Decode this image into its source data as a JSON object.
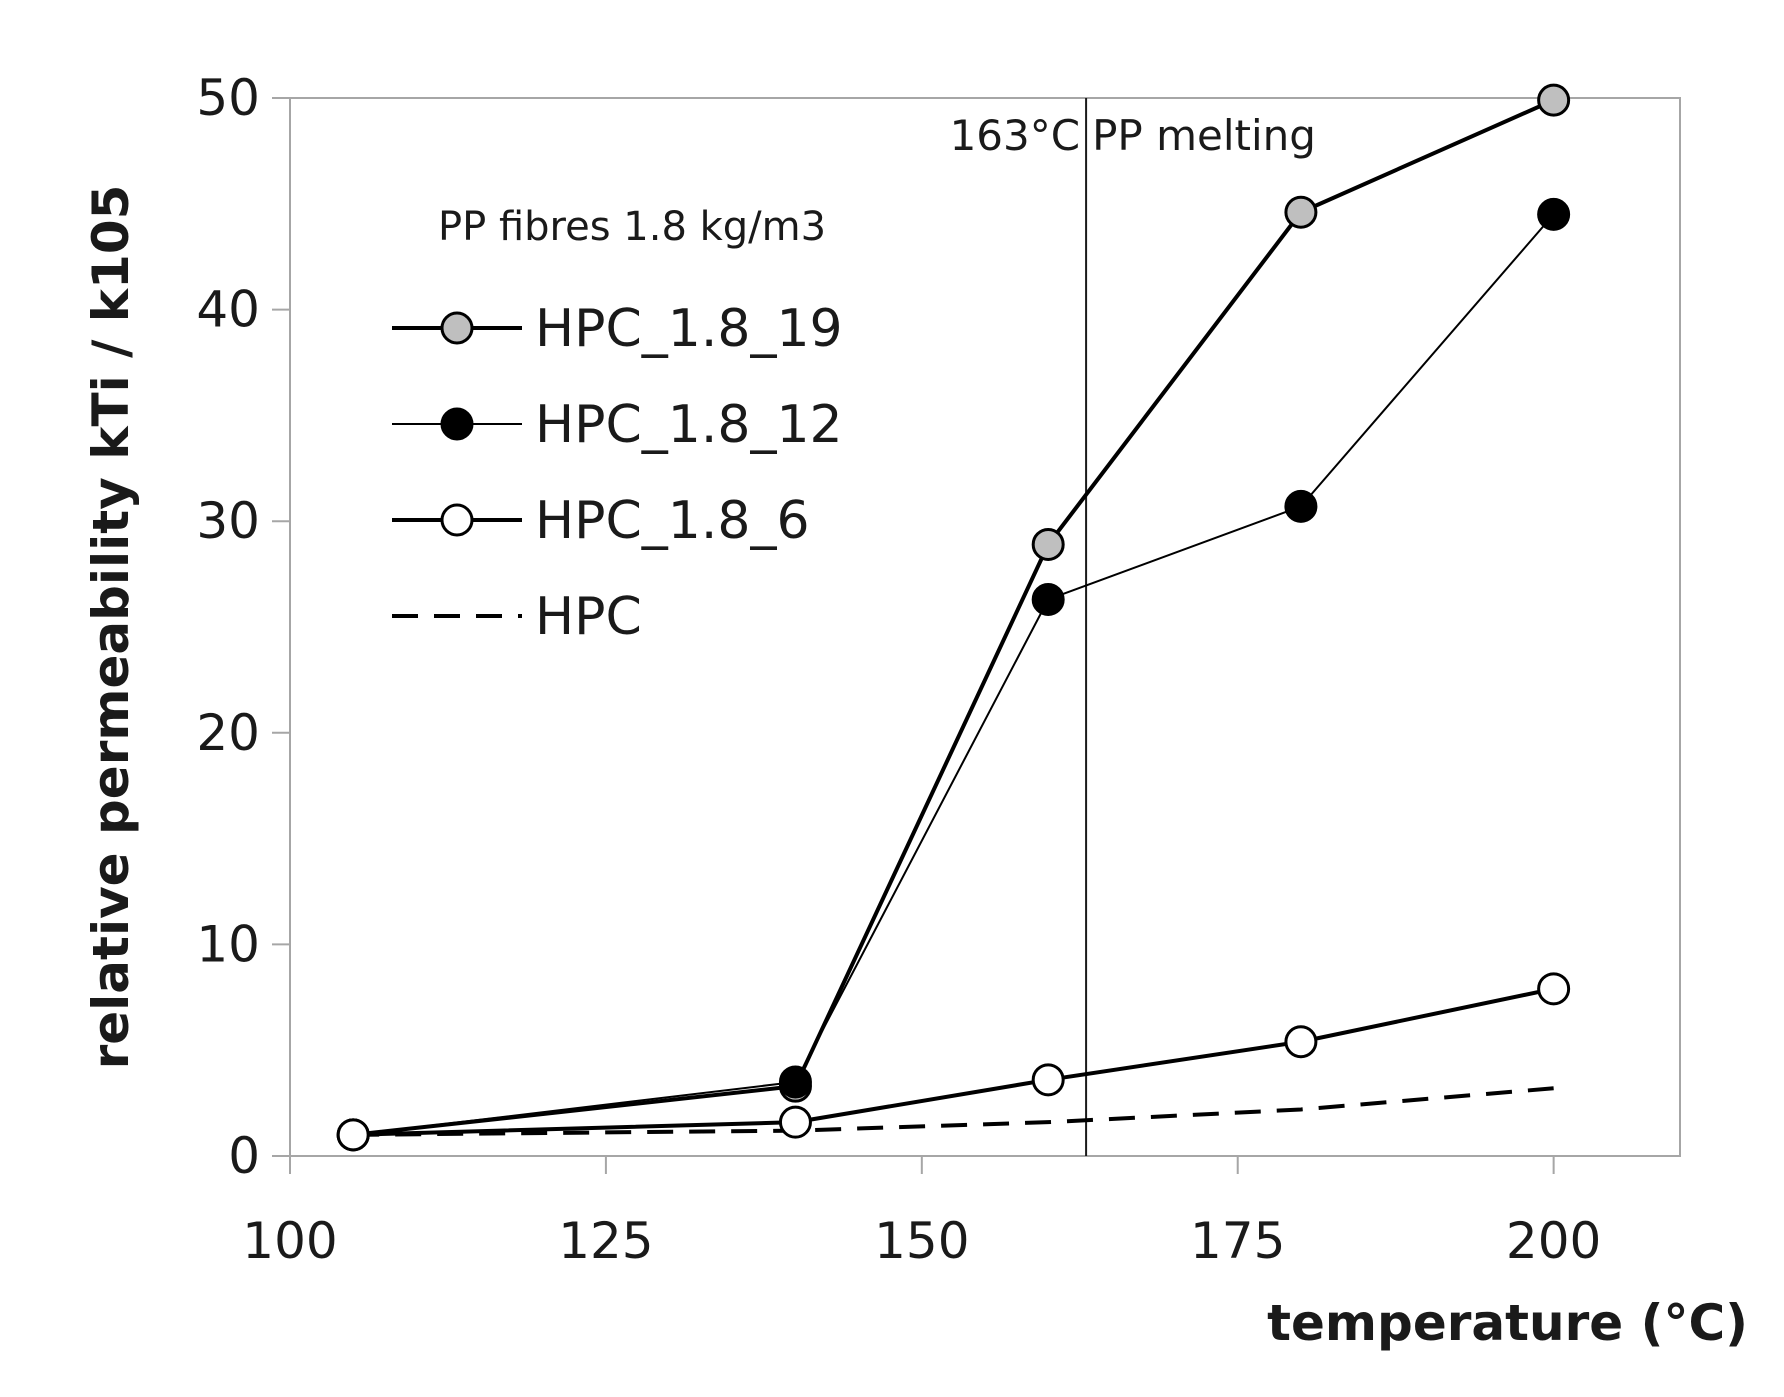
{
  "chart_data": {
    "type": "line",
    "xlabel": "temperature (°C)",
    "ylabel": "relative permeability kTi / k105",
    "xlim": [
      100,
      210
    ],
    "ylim": [
      0,
      50
    ],
    "xticks": [
      100,
      125,
      150,
      175,
      200
    ],
    "yticks": [
      0,
      10,
      20,
      30,
      40,
      50
    ],
    "grid": false,
    "legend_title": "PP fibres 1.8 kg/m3",
    "legend_position": "top-left",
    "annotation": {
      "label_left": "163°C",
      "label_right": "PP melting",
      "x": 163
    },
    "series": [
      {
        "name": "HPC_1.8_19",
        "x": [
          105,
          140,
          160,
          180,
          200
        ],
        "values": [
          1.0,
          3.3,
          28.9,
          44.6,
          49.9
        ],
        "marker": "circle",
        "marker_fill": "#bfbfbf",
        "line_style": "solid",
        "line_weight": "thick"
      },
      {
        "name": "HPC_1.8_12",
        "x": [
          105,
          140,
          160,
          180,
          200
        ],
        "values": [
          1.0,
          3.5,
          26.3,
          30.7,
          44.5
        ],
        "marker": "circle",
        "marker_fill": "#000000",
        "line_style": "solid",
        "line_weight": "thin"
      },
      {
        "name": "HPC_1.8_6",
        "x": [
          105,
          140,
          160,
          180,
          200
        ],
        "values": [
          1.0,
          1.6,
          3.6,
          5.4,
          7.9
        ],
        "marker": "circle",
        "marker_fill": "#ffffff",
        "line_style": "solid",
        "line_weight": "thick"
      },
      {
        "name": "HPC",
        "x": [
          105,
          140,
          160,
          180,
          200
        ],
        "values": [
          1.0,
          1.2,
          1.6,
          2.2,
          3.2
        ],
        "marker": "none",
        "line_style": "dashed",
        "line_weight": "thick"
      }
    ]
  }
}
